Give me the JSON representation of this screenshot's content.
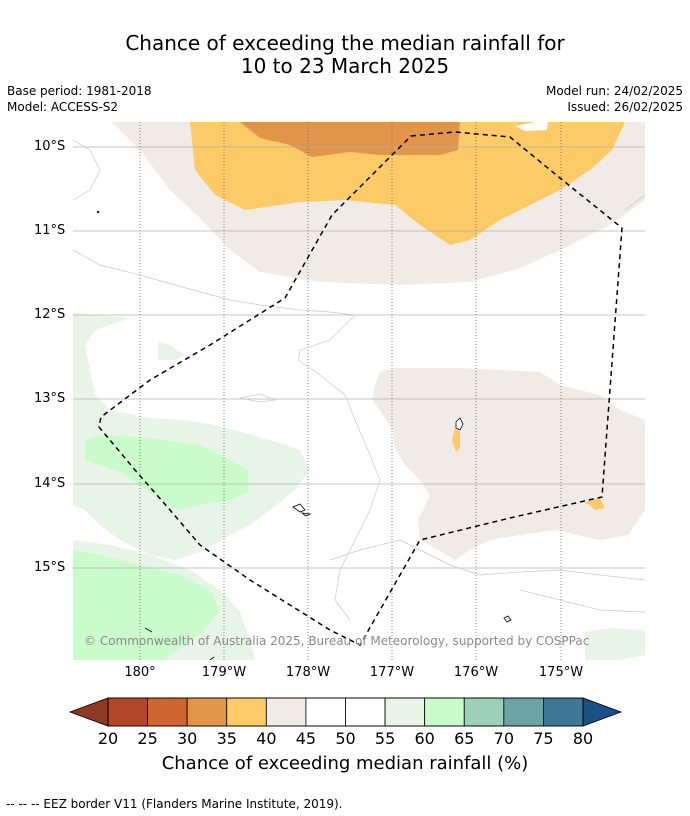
{
  "title_line1": "Chance of exceeding the median rainfall for",
  "title_line2": "10 to 23 March 2025",
  "base_period": "Base period: 1981-2018",
  "model": "Model: ACCESS-S2",
  "model_run": "Model run: 24/02/2025",
  "issued": "Issued: 26/02/2025",
  "lat_labels": [
    "10°S",
    "11°S",
    "12°S",
    "13°S",
    "14°S",
    "15°S"
  ],
  "lon_labels": [
    "180°",
    "179°W",
    "178°W",
    "177°W",
    "176°W",
    "175°W"
  ],
  "copyright": "© Commonwealth of Australia 2025, Bureau of Meteorology, supported by COSPPac",
  "colorbar": {
    "ticks": [
      "20",
      "25",
      "30",
      "35",
      "40",
      "45",
      "50",
      "55",
      "60",
      "65",
      "70",
      "75",
      "80"
    ],
    "colors": [
      "#b24727",
      "#cf6632",
      "#e0954a",
      "#fdca68",
      "#f0ebe7",
      "#ffffff",
      "#ffffff",
      "#e8f4e7",
      "#cafccb",
      "#9ccfb8",
      "#6da3a5",
      "#3d7896"
    ],
    "under_color": "#8e3a26",
    "over_color": "#1b4f86",
    "label": "Chance of exceeding median rainfall (%)"
  },
  "footer": "--  --  -- EEZ border V11 (Flanders Marine Institute, 2019)."
}
